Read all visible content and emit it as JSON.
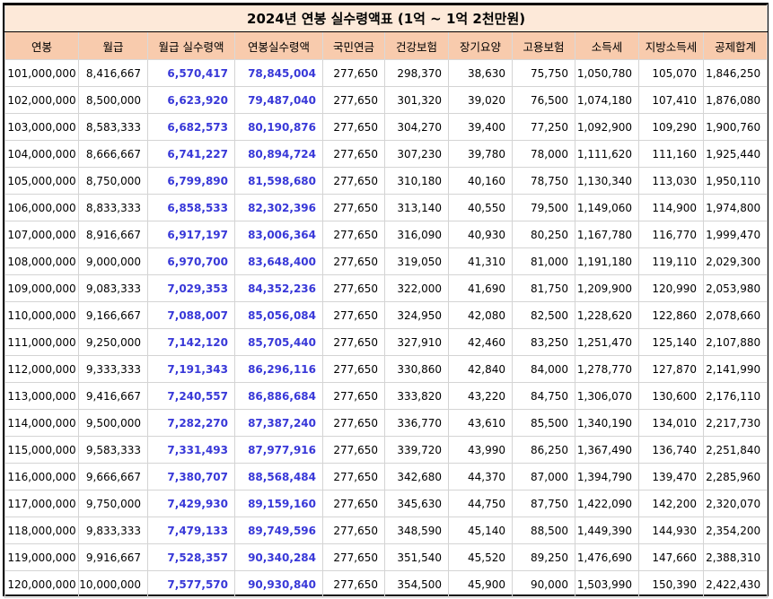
{
  "title": "2024년 연봉 실수령액표 (1억 ~ 1억 2천만원)",
  "headers": [
    "연봉",
    "월급",
    "월급 실수령액",
    "연봉실수령액",
    "국민연금",
    "건강보험",
    "장기요양",
    "고용보험",
    "소득세",
    "지방소득세",
    "공제합계"
  ],
  "rows": [
    [
      "101,000,000",
      "8,416,667",
      "6,570,417",
      "78,845,004",
      "277,650",
      "298,370",
      "38,630",
      "75,750",
      "1,050,780",
      "105,070",
      "1,846,250"
    ],
    [
      "102,000,000",
      "8,500,000",
      "6,623,920",
      "79,487,040",
      "277,650",
      "301,320",
      "39,020",
      "76,500",
      "1,074,180",
      "107,410",
      "1,876,080"
    ],
    [
      "103,000,000",
      "8,583,333",
      "6,682,573",
      "80,190,876",
      "277,650",
      "304,270",
      "39,400",
      "77,250",
      "1,092,900",
      "109,290",
      "1,900,760"
    ],
    [
      "104,000,000",
      "8,666,667",
      "6,741,227",
      "80,894,724",
      "277,650",
      "307,230",
      "39,780",
      "78,000",
      "1,111,620",
      "111,160",
      "1,925,440"
    ],
    [
      "105,000,000",
      "8,750,000",
      "6,799,890",
      "81,598,680",
      "277,650",
      "310,180",
      "40,160",
      "78,750",
      "1,130,340",
      "113,030",
      "1,950,110"
    ],
    [
      "106,000,000",
      "8,833,333",
      "6,858,533",
      "82,302,396",
      "277,650",
      "313,140",
      "40,550",
      "79,500",
      "1,149,060",
      "114,900",
      "1,974,800"
    ],
    [
      "107,000,000",
      "8,916,667",
      "6,917,197",
      "83,006,364",
      "277,650",
      "316,090",
      "40,930",
      "80,250",
      "1,167,780",
      "116,770",
      "1,999,470"
    ],
    [
      "108,000,000",
      "9,000,000",
      "6,970,700",
      "83,648,400",
      "277,650",
      "319,050",
      "41,310",
      "81,000",
      "1,191,180",
      "119,110",
      "2,029,300"
    ],
    [
      "109,000,000",
      "9,083,333",
      "7,029,353",
      "84,352,236",
      "277,650",
      "322,000",
      "41,690",
      "81,750",
      "1,209,900",
      "120,990",
      "2,053,980"
    ],
    [
      "110,000,000",
      "9,166,667",
      "7,088,007",
      "85,056,084",
      "277,650",
      "324,950",
      "42,080",
      "82,500",
      "1,228,620",
      "122,860",
      "2,078,660"
    ],
    [
      "111,000,000",
      "9,250,000",
      "7,142,120",
      "85,705,440",
      "277,650",
      "327,910",
      "42,460",
      "83,250",
      "1,251,470",
      "125,140",
      "2,107,880"
    ],
    [
      "112,000,000",
      "9,333,333",
      "7,191,343",
      "86,296,116",
      "277,650",
      "330,860",
      "42,840",
      "84,000",
      "1,278,770",
      "127,870",
      "2,141,990"
    ],
    [
      "113,000,000",
      "9,416,667",
      "7,240,557",
      "86,886,684",
      "277,650",
      "333,820",
      "43,220",
      "84,750",
      "1,306,070",
      "130,600",
      "2,176,110"
    ],
    [
      "114,000,000",
      "9,500,000",
      "7,282,270",
      "87,387,240",
      "277,650",
      "336,770",
      "43,610",
      "85,500",
      "1,340,190",
      "134,010",
      "2,217,730"
    ],
    [
      "115,000,000",
      "9,583,333",
      "7,331,493",
      "87,977,916",
      "277,650",
      "339,720",
      "43,990",
      "86,250",
      "1,367,490",
      "136,740",
      "2,251,840"
    ],
    [
      "116,000,000",
      "9,666,667",
      "7,380,707",
      "88,568,484",
      "277,650",
      "342,680",
      "44,370",
      "87,000",
      "1,394,790",
      "139,470",
      "2,285,960"
    ],
    [
      "117,000,000",
      "9,750,000",
      "7,429,930",
      "89,159,160",
      "277,650",
      "345,630",
      "44,750",
      "87,750",
      "1,422,090",
      "142,200",
      "2,320,070"
    ],
    [
      "118,000,000",
      "9,833,333",
      "7,479,133",
      "89,749,596",
      "277,650",
      "348,590",
      "45,140",
      "88,500",
      "1,449,390",
      "144,930",
      "2,354,200"
    ],
    [
      "119,000,000",
      "9,916,667",
      "7,528,357",
      "90,340,284",
      "277,650",
      "351,540",
      "45,520",
      "89,250",
      "1,476,690",
      "147,660",
      "2,388,310"
    ],
    [
      "120,000,000",
      "10,000,000",
      "7,577,570",
      "90,930,840",
      "277,650",
      "354,500",
      "45,900",
      "90,000",
      "1,503,990",
      "150,390",
      "2,422,430"
    ]
  ],
  "colors": {
    "title_background": "#fde9d9",
    "header_background": "#f8cbad",
    "highlight_text": "#3838d8"
  }
}
